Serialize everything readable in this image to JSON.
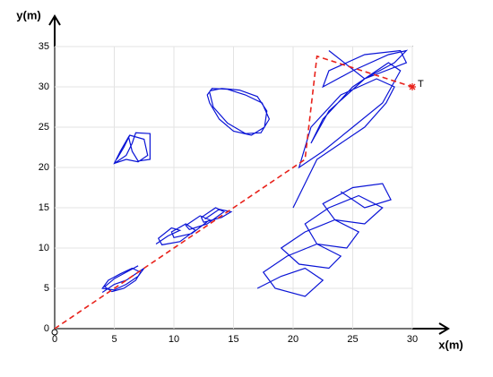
{
  "chart_data": {
    "type": "line",
    "x_label": "x(m)",
    "y_label": "y(m)",
    "xlim": [
      0,
      30
    ],
    "ylim": [
      0,
      35
    ],
    "xticks": [
      0,
      5,
      10,
      15,
      20,
      25,
      30
    ],
    "yticks": [
      0,
      5,
      10,
      15,
      20,
      25,
      30,
      35
    ],
    "grid": true,
    "reference": {
      "color": "#e8221b",
      "x": [
        0,
        21,
        22,
        30
      ],
      "y": [
        0,
        21,
        33.8,
        30
      ]
    },
    "target": {
      "label": "T",
      "x": 30,
      "y": 30,
      "color": "#e8221b"
    },
    "series": [
      {
        "color": "#0a14d6",
        "x": [
          4,
          5,
          6,
          7,
          7.5,
          7,
          6,
          5,
          4,
          4.5,
          5.5,
          6.5,
          7.2,
          6.8,
          5.8,
          4.8,
          4.2,
          5,
          6,
          7
        ],
        "y": [
          4.5,
          5.5,
          6,
          7,
          7.5,
          6.5,
          5.5,
          4.8,
          5,
          6,
          6.8,
          7.5,
          7,
          6,
          5,
          4.6,
          5.2,
          6.2,
          7,
          7.8
        ]
      },
      {
        "color": "#0a14d6",
        "x": [
          5,
          6,
          6.5,
          6.8,
          8,
          8,
          7,
          6.5,
          6.2,
          5.5,
          5,
          6,
          7,
          7.8,
          7.5,
          6.3,
          5.8,
          5.2
        ],
        "y": [
          20.5,
          21.5,
          23,
          24.3,
          24.2,
          21,
          20.8,
          22,
          23.8,
          22,
          20.5,
          21,
          20.7,
          21.5,
          23.5,
          24,
          22.5,
          21
        ]
      },
      {
        "color": "#0a14d6",
        "x": [
          13,
          14,
          15.5,
          17,
          17.8,
          17.6,
          16.5,
          15,
          13.8,
          13,
          12.8,
          13.2,
          14.5,
          16,
          17.4,
          18,
          17.3,
          16,
          14.5,
          13.3,
          13
        ],
        "y": [
          29.5,
          29.8,
          29.6,
          28.8,
          27,
          25,
          24,
          24.5,
          26,
          28,
          29,
          29.8,
          29.7,
          29,
          28,
          26,
          24.3,
          24.2,
          25.5,
          27.5,
          29.3
        ]
      },
      {
        "color": "#0a14d6",
        "x": [
          8.5,
          9.5,
          10.5,
          9.8,
          8.7,
          9,
          10.5,
          11.8,
          11,
          9.8,
          10,
          11.5,
          13,
          12.2,
          11,
          11.3,
          12.8,
          14.2,
          13.5,
          12.3,
          12.5,
          14,
          14.8,
          13.8,
          12.6
        ],
        "y": [
          10.5,
          11.5,
          12.2,
          12.5,
          11.2,
          10.4,
          10.8,
          12.2,
          13,
          12,
          11.3,
          11.8,
          13.5,
          14,
          12.8,
          12.3,
          13,
          14.5,
          15,
          13.8,
          13.2,
          13.8,
          14.5,
          14.8,
          13.6
        ]
      },
      {
        "color": "#0a14d6",
        "x": [
          20,
          21,
          22,
          24,
          26,
          27.8,
          28.5,
          27,
          24,
          21.5,
          20.5,
          22.5,
          25,
          27.5,
          29,
          28,
          25,
          22.5,
          21.5,
          23,
          26,
          28.5,
          29.5,
          28,
          25,
          22.5,
          23,
          26,
          29,
          29.5,
          26,
          23
        ],
        "y": [
          15,
          18,
          21,
          23,
          25,
          28,
          30,
          31,
          29,
          25,
          20,
          22,
          25,
          28,
          32,
          33,
          30,
          26,
          23,
          27,
          31,
          33,
          34.5,
          34,
          32,
          30,
          32,
          34,
          34.5,
          33,
          31,
          34.5
        ]
      },
      {
        "color": "#0a14d6",
        "x": [
          17,
          19,
          21,
          22.5,
          21,
          18.5,
          17.5,
          19.5,
          22,
          24,
          23,
          20.5,
          19,
          21,
          23.5,
          25.5,
          24.5,
          22,
          21,
          23,
          25.5,
          27.5,
          26,
          23.5,
          22.5,
          25,
          27.5,
          28.2,
          26,
          24
        ],
        "y": [
          5,
          6.5,
          7.5,
          6,
          4,
          5,
          7,
          9,
          10.5,
          9,
          7.5,
          8,
          10,
          12,
          13.5,
          12,
          10,
          10.5,
          13,
          15,
          16.5,
          15,
          13,
          13.5,
          15.5,
          17.5,
          18,
          16,
          15,
          17
        ]
      }
    ]
  }
}
